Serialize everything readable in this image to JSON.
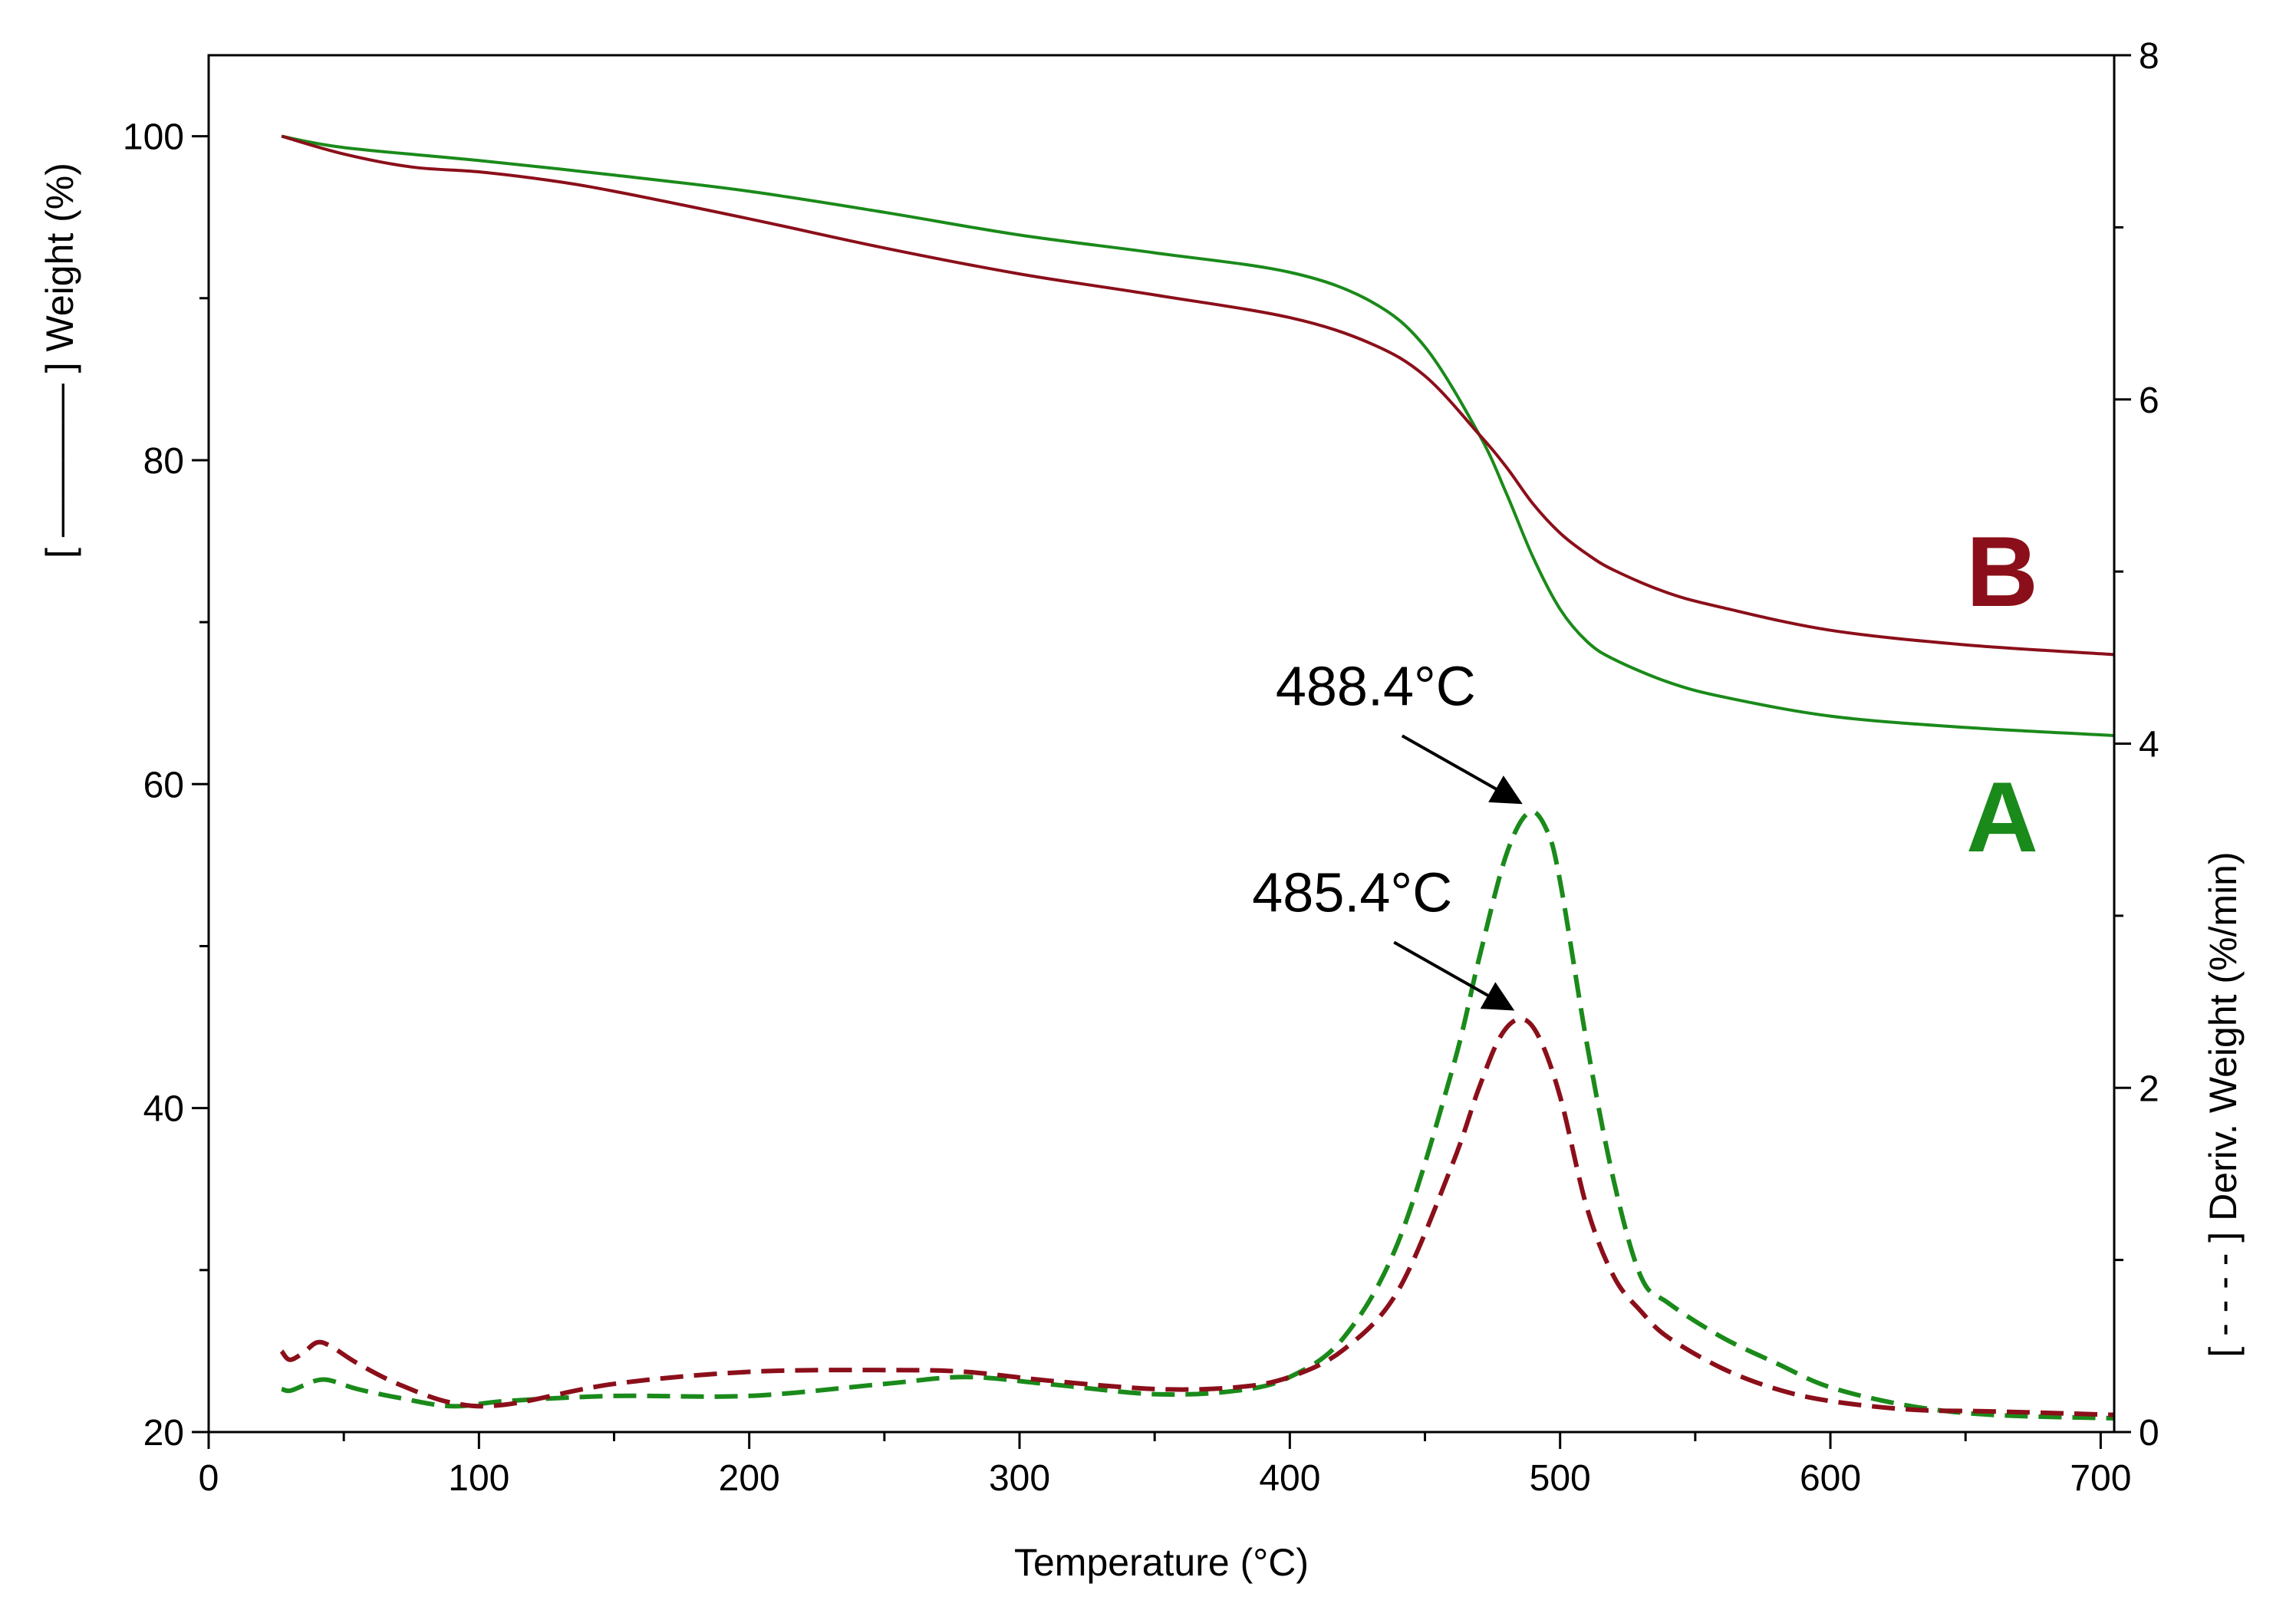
{
  "chart_data": {
    "type": "line",
    "xlabel": "Temperature (°C)",
    "ylabel_left": "[ ———— ] Weight (%)",
    "ylabel_right": "[ - - - - ] Deriv. Weight (%/min)",
    "xlim": [
      0,
      705
    ],
    "ylim_left": [
      20,
      105
    ],
    "ylim_right": [
      0,
      8
    ],
    "x_ticks": [
      0,
      100,
      200,
      300,
      400,
      500,
      600,
      700
    ],
    "y_ticks_left": [
      20,
      40,
      60,
      80,
      100
    ],
    "y_ticks_right": [
      0,
      2,
      4,
      6,
      8
    ],
    "colors": {
      "A": "#1a8a1a",
      "B": "#8b0f1a"
    },
    "series": [
      {
        "name": "A weight",
        "label": "A",
        "axis": "left",
        "style": "solid",
        "color_key": "A",
        "x": [
          27,
          50,
          100,
          150,
          200,
          250,
          300,
          350,
          400,
          430,
          450,
          470,
          480,
          490,
          500,
          510,
          520,
          540,
          560,
          600,
          650,
          705
        ],
        "y": [
          100,
          99.3,
          98.5,
          97.6,
          96.6,
          95.3,
          93.9,
          92.8,
          91.6,
          89.8,
          87.0,
          81.6,
          78.0,
          74.0,
          70.8,
          68.8,
          67.7,
          66.3,
          65.4,
          64.2,
          63.5,
          63.0
        ]
      },
      {
        "name": "B weight",
        "label": "B",
        "axis": "left",
        "style": "solid",
        "color_key": "B",
        "x": [
          27,
          50,
          75,
          100,
          125,
          150,
          200,
          250,
          300,
          350,
          400,
          430,
          450,
          470,
          480,
          490,
          500,
          510,
          520,
          540,
          560,
          600,
          650,
          705
        ],
        "y": [
          100,
          98.9,
          98.1,
          97.8,
          97.3,
          96.6,
          94.9,
          93.1,
          91.5,
          90.2,
          88.8,
          87.2,
          85.2,
          81.6,
          79.6,
          77.3,
          75.5,
          74.2,
          73.2,
          71.8,
          70.9,
          69.5,
          68.6,
          68.0
        ]
      },
      {
        "name": "A deriv",
        "label": "A",
        "axis": "right",
        "style": "dashed",
        "color_key": "A",
        "x": [
          27,
          30,
          35,
          40,
          45,
          55,
          70,
          90,
          110,
          150,
          200,
          250,
          280,
          310,
          350,
          380,
          400,
          420,
          440,
          460,
          470,
          480,
          488.4,
          495,
          500,
          510,
          520,
          530,
          540,
          560,
          580,
          600,
          630,
          660,
          705
        ],
        "y": [
          0.25,
          0.24,
          0.27,
          0.3,
          0.3,
          0.25,
          0.2,
          0.15,
          0.18,
          0.21,
          0.21,
          0.28,
          0.32,
          0.28,
          0.22,
          0.24,
          0.32,
          0.55,
          1.1,
          2.1,
          2.75,
          3.35,
          3.6,
          3.5,
          3.2,
          2.25,
          1.45,
          0.9,
          0.75,
          0.55,
          0.4,
          0.26,
          0.15,
          0.1,
          0.08
        ]
      },
      {
        "name": "B deriv",
        "label": "B",
        "axis": "right",
        "style": "dashed",
        "color_key": "B",
        "x": [
          27,
          30,
          35,
          40,
          45,
          55,
          70,
          90,
          110,
          150,
          200,
          250,
          280,
          310,
          350,
          380,
          400,
          420,
          440,
          460,
          470,
          478,
          485.4,
          492,
          500,
          510,
          520,
          530,
          540,
          560,
          580,
          600,
          630,
          660,
          705
        ],
        "y": [
          0.47,
          0.42,
          0.46,
          0.52,
          0.5,
          0.4,
          0.28,
          0.17,
          0.16,
          0.28,
          0.35,
          0.36,
          0.35,
          0.3,
          0.25,
          0.26,
          0.32,
          0.48,
          0.82,
          1.55,
          2.0,
          2.3,
          2.4,
          2.3,
          1.95,
          1.3,
          0.9,
          0.7,
          0.55,
          0.37,
          0.25,
          0.18,
          0.13,
          0.12,
          0.1
        ]
      }
    ],
    "annotations": [
      {
        "text": "488.4°C",
        "series": "A deriv",
        "x": 488.4,
        "y": 3.6
      },
      {
        "text": "485.4°C",
        "series": "B deriv",
        "x": 485.4,
        "y": 2.4
      }
    ],
    "curve_labels": [
      {
        "text": "B",
        "color_key": "B"
      },
      {
        "text": "A",
        "color_key": "A"
      }
    ]
  }
}
